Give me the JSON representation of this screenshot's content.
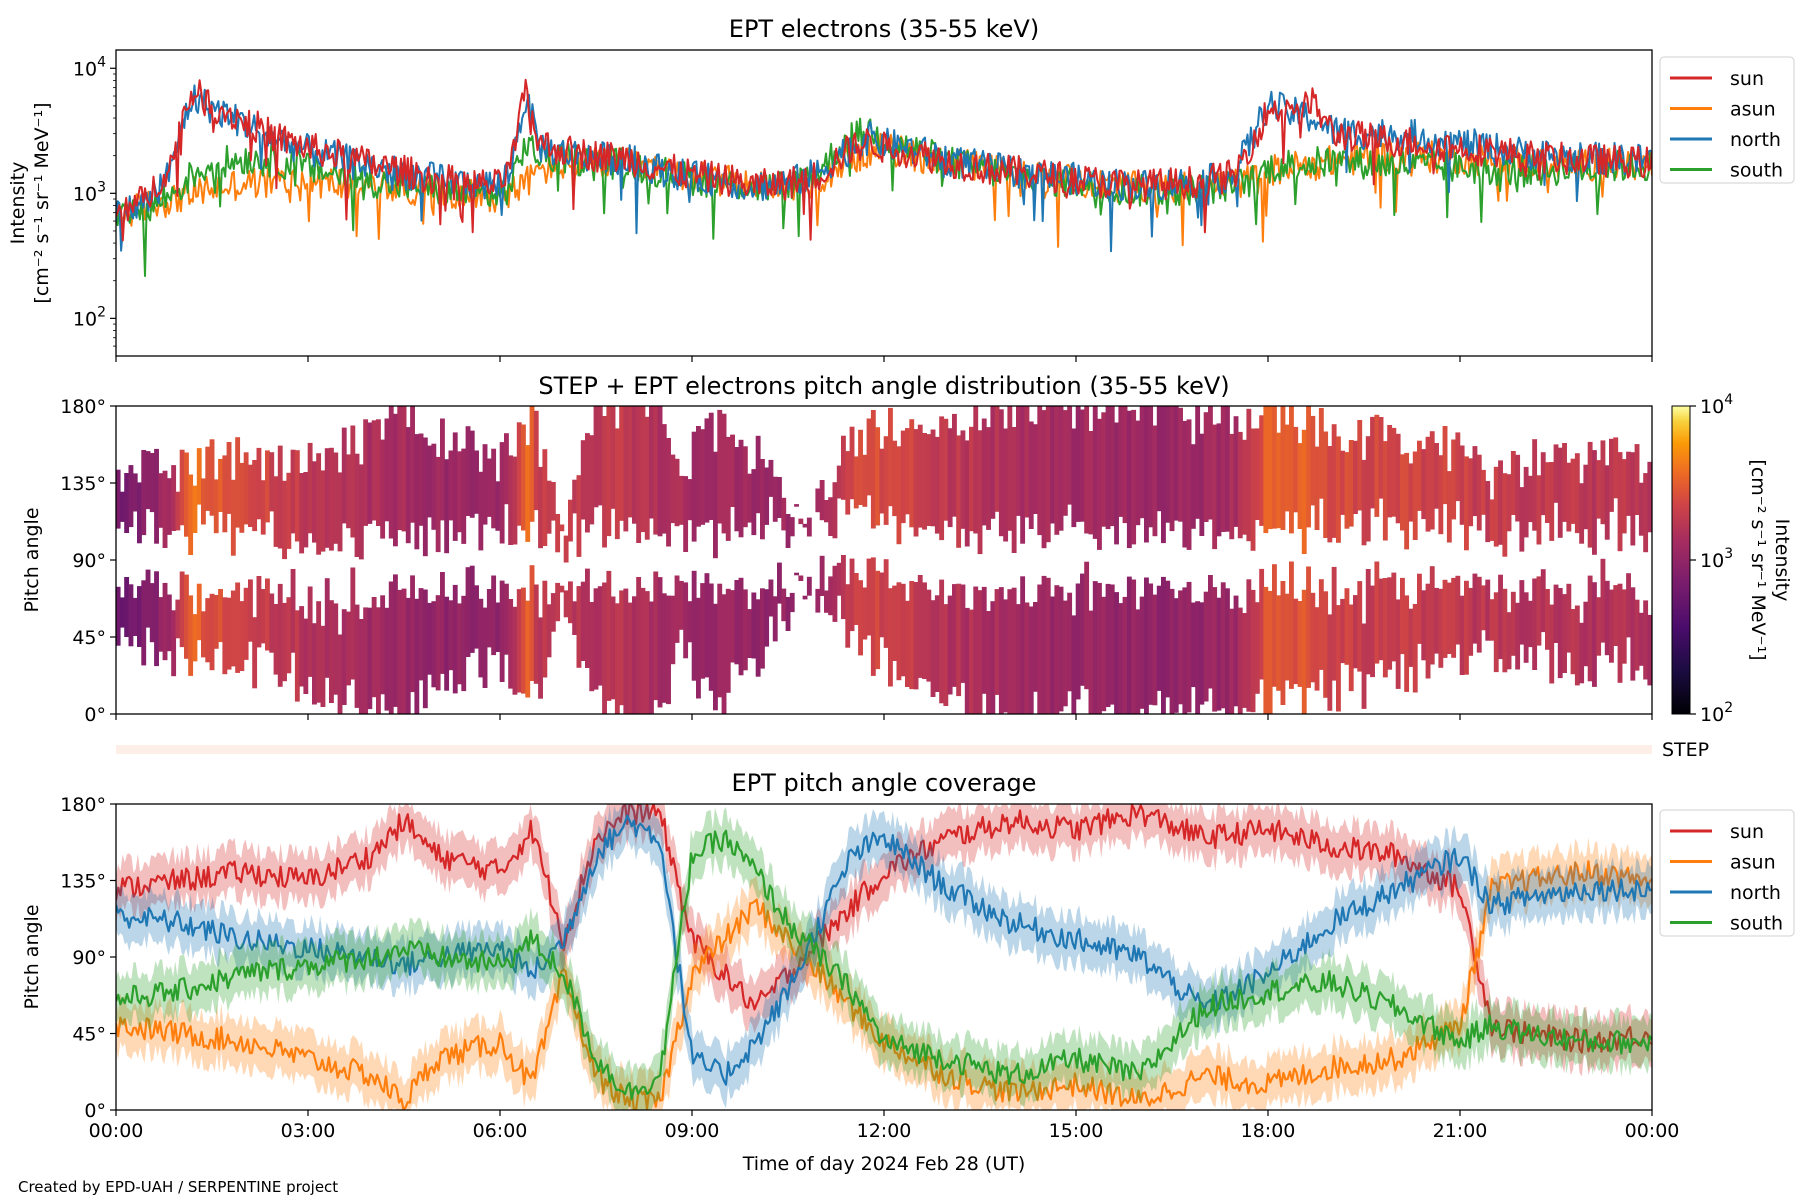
{
  "credit": "Created by EPD-UAH / SERPENTINE project",
  "xaxis": {
    "label": "Time of day 2024 Feb 28 (UT)",
    "ticks": [
      "00:00",
      "03:00",
      "06:00",
      "09:00",
      "12:00",
      "15:00",
      "18:00",
      "21:00",
      "00:00"
    ],
    "range_hours": [
      0,
      24
    ]
  },
  "chart_data": [
    {
      "type": "line",
      "title": "EPT electrons (35-55 keV)",
      "ylabel_line1": "Intensity",
      "ylabel_line2": "[cm⁻² s⁻¹ sr⁻¹ MeV⁻¹]",
      "yscale": "log",
      "ylim": [
        50,
        14000
      ],
      "yticks": [
        {
          "value": 100,
          "base": "10",
          "exp": "2"
        },
        {
          "value": 1000,
          "base": "10",
          "exp": "3"
        },
        {
          "value": 10000,
          "base": "10",
          "exp": "4"
        }
      ],
      "legend_position": "outside-right-top",
      "x": [
        0,
        0.5,
        0.9,
        1.2,
        1.5,
        2,
        2.5,
        3,
        3.5,
        4,
        4.5,
        5,
        5.5,
        6,
        6.2,
        6.4,
        6.6,
        7,
        7.5,
        8,
        8.5,
        9,
        9.5,
        10,
        10.5,
        11,
        11.5,
        11.8,
        12,
        12.5,
        13,
        13.5,
        14,
        14.5,
        15,
        15.5,
        16,
        16.5,
        17,
        17.5,
        17.8,
        18,
        18.3,
        18.7,
        19,
        19.5,
        20,
        20.5,
        21,
        21.5,
        22,
        22.5,
        23,
        23.5,
        24
      ],
      "series": [
        {
          "name": "sun",
          "color": "#d62728",
          "values": [
            700,
            900,
            1800,
            6500,
            5000,
            3800,
            2800,
            2300,
            2000,
            1700,
            1500,
            1300,
            1200,
            1150,
            1800,
            6000,
            2500,
            2200,
            2000,
            1900,
            1600,
            1400,
            1300,
            1150,
            1200,
            1400,
            2300,
            2600,
            2300,
            2100,
            1800,
            1600,
            1500,
            1400,
            1300,
            1200,
            1150,
            1200,
            1250,
            1400,
            2800,
            4500,
            5000,
            5200,
            3000,
            2800,
            2600,
            2500,
            2300,
            2200,
            2000,
            1900,
            1850,
            1800,
            1750
          ]
        },
        {
          "name": "asun",
          "color": "#ff7f0e",
          "values": [
            650,
            800,
            900,
            1000,
            1100,
            1200,
            1250,
            1250,
            1200,
            1150,
            1100,
            1050,
            1000,
            950,
            1050,
            1200,
            1500,
            1700,
            1800,
            1700,
            1500,
            1350,
            1250,
            1150,
            1100,
            1300,
            1900,
            2200,
            2300,
            2000,
            1800,
            1600,
            1450,
            1350,
            1250,
            1150,
            1100,
            1100,
            1150,
            1200,
            1300,
            1500,
            1600,
            1700,
            1800,
            1900,
            2000,
            1950,
            1900,
            1850,
            1800,
            1750,
            1700,
            1700,
            1700
          ]
        },
        {
          "name": "north",
          "color": "#1f77b4",
          "values": [
            650,
            850,
            1600,
            5800,
            4800,
            3600,
            2700,
            2200,
            1900,
            1650,
            1450,
            1300,
            1200,
            1150,
            1700,
            5500,
            2400,
            2100,
            1950,
            1850,
            1550,
            1350,
            1250,
            1150,
            1200,
            1450,
            2400,
            2800,
            2500,
            2200,
            1850,
            1650,
            1500,
            1400,
            1300,
            1200,
            1150,
            1200,
            1250,
            1400,
            3000,
            5200,
            4500,
            4000,
            3200,
            3000,
            3000,
            2800,
            2500,
            2300,
            2100,
            2000,
            1900,
            1900,
            1850
          ]
        },
        {
          "name": "south",
          "color": "#2ca02c",
          "values": [
            600,
            750,
            1000,
            1400,
            1700,
            1900,
            1800,
            1600,
            1400,
            1250,
            1150,
            1050,
            1000,
            950,
            1200,
            2500,
            2000,
            1900,
            1800,
            1700,
            1500,
            1300,
            1200,
            1100,
            1150,
            1500,
            2800,
            3200,
            2700,
            2200,
            1800,
            1550,
            1400,
            1300,
            1200,
            1100,
            1050,
            1050,
            1100,
            1150,
            1300,
            1600,
            1700,
            1750,
            1800,
            1750,
            1700,
            1650,
            1600,
            1550,
            1500,
            1550,
            1600,
            1650,
            1650
          ]
        }
      ]
    },
    {
      "type": "heatmap",
      "title": "STEP + EPT electrons pitch angle distribution (35-55 keV)",
      "ylabel": "Pitch angle",
      "ylim": [
        0,
        180
      ],
      "yticks": [
        "0°",
        "45°",
        "90°",
        "135°",
        "180°"
      ],
      "colorbar": {
        "label_line1": "Intensity",
        "label_line2": "[cm⁻² s⁻¹ sr⁻¹ MeV⁻¹]",
        "scale": "log",
        "range": [
          100,
          10000
        ],
        "ticks": [
          {
            "value": 100,
            "base": "10",
            "exp": "2"
          },
          {
            "value": 1000,
            "base": "10",
            "exp": "3"
          },
          {
            "value": 10000,
            "base": "10",
            "exp": "4"
          }
        ],
        "colormap": "inferno"
      },
      "step_strip_label": "STEP"
    },
    {
      "type": "line",
      "title": "EPT pitch angle coverage",
      "ylabel": "Pitch angle",
      "ylim": [
        0,
        180
      ],
      "yticks": [
        "0°",
        "45°",
        "90°",
        "135°",
        "180°"
      ],
      "legend_position": "outside-right-top",
      "x": [
        0,
        1,
        2,
        3,
        4,
        4.5,
        5,
        6,
        6.5,
        7,
        7.5,
        8,
        8.5,
        9,
        9.5,
        10,
        10.5,
        11,
        11.5,
        12,
        13,
        14,
        15,
        16,
        17,
        18,
        19,
        20,
        21,
        21.5,
        22,
        23,
        24
      ],
      "series": [
        {
          "name": "sun",
          "color": "#d62728",
          "values": [
            130,
            135,
            140,
            135,
            150,
            170,
            150,
            140,
            165,
            100,
            160,
            175,
            175,
            100,
            80,
            60,
            80,
            100,
            120,
            140,
            160,
            170,
            165,
            175,
            160,
            165,
            155,
            150,
            130,
            50,
            45,
            40,
            45
          ]
        },
        {
          "name": "asun",
          "color": "#ff7f0e",
          "values": [
            50,
            45,
            40,
            30,
            20,
            5,
            30,
            40,
            15,
            80,
            20,
            5,
            5,
            80,
            100,
            120,
            100,
            80,
            60,
            40,
            20,
            10,
            15,
            5,
            20,
            15,
            25,
            30,
            50,
            130,
            135,
            140,
            135
          ]
        },
        {
          "name": "north",
          "color": "#1f77b4",
          "values": [
            115,
            110,
            100,
            95,
            90,
            85,
            90,
            95,
            80,
            100,
            150,
            170,
            160,
            30,
            20,
            40,
            70,
            110,
            150,
            160,
            130,
            110,
            100,
            90,
            60,
            80,
            110,
            130,
            150,
            120,
            125,
            130,
            130
          ]
        },
        {
          "name": "south",
          "color": "#2ca02c",
          "values": [
            65,
            70,
            80,
            85,
            90,
            95,
            90,
            85,
            100,
            80,
            30,
            10,
            20,
            150,
            160,
            140,
            110,
            90,
            70,
            40,
            30,
            20,
            30,
            20,
            60,
            70,
            75,
            60,
            40,
            50,
            45,
            40,
            40
          ]
        }
      ]
    }
  ]
}
